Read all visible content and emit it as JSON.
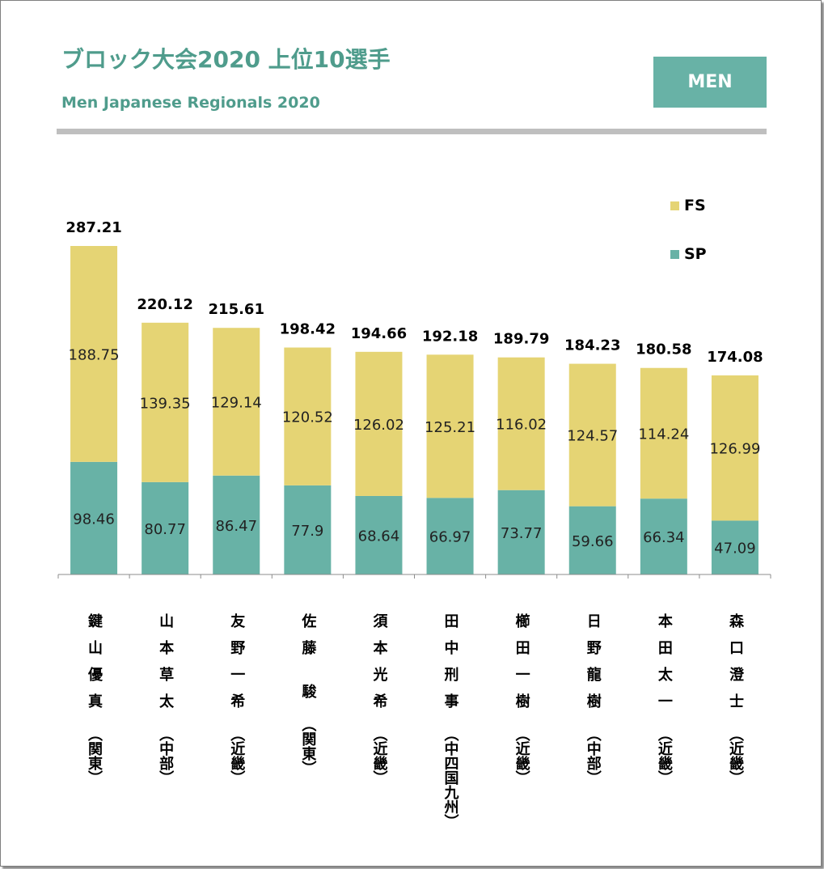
{
  "title": "ブロック大会2020 上位10選手",
  "subtitle": "Men Japanese Regionals 2020",
  "badge": "MEN",
  "colors": {
    "accent": "#4f9c8c",
    "sp": "#68b2a6",
    "fs": "#e5d474",
    "rule": "#bfbfbf"
  },
  "chart_data": {
    "type": "bar",
    "stacked": true,
    "categories": [
      {
        "name": "鍵山優真",
        "region": "（関東）"
      },
      {
        "name": "山本草太",
        "region": "（中部）"
      },
      {
        "name": "友野一希",
        "region": "（近畿）"
      },
      {
        "name": "佐藤 駿",
        "region": "（関東）"
      },
      {
        "name": "須本光希",
        "region": "（近畿）"
      },
      {
        "name": "田中刑事",
        "region": "（中四国九州）"
      },
      {
        "name": "櫛田一樹",
        "region": "（近畿）"
      },
      {
        "name": "日野龍樹",
        "region": "（中部）"
      },
      {
        "name": "本田太一",
        "region": "（近畿）"
      },
      {
        "name": "森口澄士",
        "region": "（近畿）"
      }
    ],
    "series": [
      {
        "name": "SP",
        "color": "#68b2a6",
        "values": [
          98.46,
          80.77,
          86.47,
          77.9,
          68.64,
          66.97,
          73.77,
          59.66,
          66.34,
          47.09
        ]
      },
      {
        "name": "FS",
        "color": "#e5d474",
        "values": [
          188.75,
          139.35,
          129.14,
          120.52,
          126.02,
          125.21,
          116.02,
          124.57,
          114.24,
          126.99
        ]
      }
    ],
    "totals": [
      "287.21",
      "220.12",
      "215.61",
      "198.42",
      "194.66",
      "192.18",
      "189.79",
      "184.23",
      "180.58",
      "174.08"
    ],
    "segment_labels": {
      "SP": [
        "98.46",
        "80.77",
        "86.47",
        "77.9",
        "68.64",
        "66.97",
        "73.77",
        "59.66",
        "66.34",
        "47.09"
      ],
      "FS": [
        "188.75",
        "139.35",
        "129.14",
        "120.52",
        "126.02",
        "125.21",
        "116.02",
        "124.57",
        "114.24",
        "126.99"
      ]
    },
    "legend": [
      "FS",
      "SP"
    ],
    "legend_position": "top-right",
    "ylim": [
      0,
      290
    ],
    "grid": false,
    "xlabel": "",
    "ylabel": ""
  }
}
